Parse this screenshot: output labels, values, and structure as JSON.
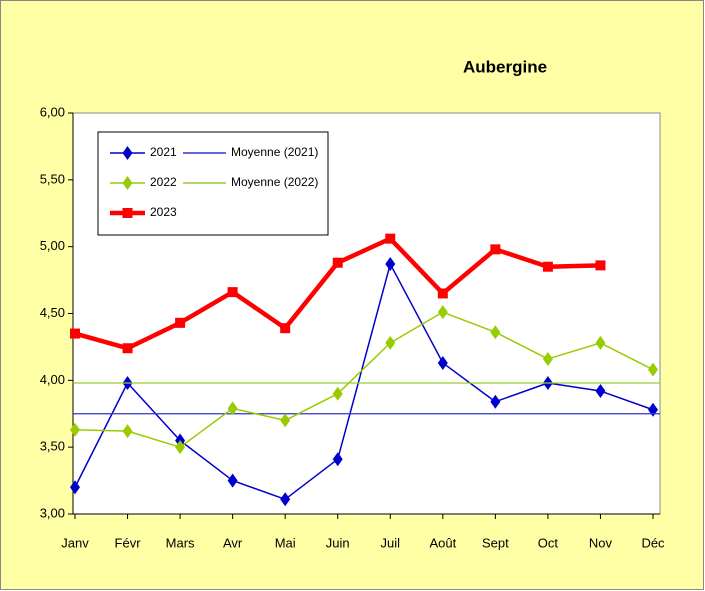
{
  "chart_data": {
    "type": "line",
    "title": "Aubergine",
    "categories": [
      "Janv",
      "Févr",
      "Mars",
      "Avr",
      "Mai",
      "Juin",
      "Juil",
      "Août",
      "Sept",
      "Oct",
      "Nov",
      "Déc"
    ],
    "series": [
      {
        "name": "2021",
        "color": "#0000cc",
        "marker": "diamond",
        "values": [
          3.2,
          3.98,
          3.55,
          3.25,
          3.11,
          3.41,
          4.87,
          4.13,
          3.84,
          3.98,
          3.92,
          3.78
        ]
      },
      {
        "name": "Moyenne (2021)",
        "color": "#3333cc",
        "trendline": true,
        "value": 3.75
      },
      {
        "name": "2022",
        "color": "#99cc00",
        "marker": "diamond",
        "values": [
          3.63,
          3.62,
          3.5,
          3.79,
          3.7,
          3.9,
          4.28,
          4.51,
          4.36,
          4.16,
          4.28,
          4.08
        ]
      },
      {
        "name": "Moyenne (2022)",
        "color": "#99cc33",
        "trendline": true,
        "value": 3.98
      },
      {
        "name": "2023",
        "color": "#ff0000",
        "marker": "square",
        "values": [
          4.35,
          4.24,
          4.43,
          4.66,
          4.39,
          4.88,
          5.06,
          4.65,
          4.98,
          4.85,
          4.86,
          null
        ]
      }
    ],
    "ylim": [
      3,
      6
    ],
    "yticks": [
      {
        "value": 3,
        "label": "3,00"
      },
      {
        "value": 3.5,
        "label": "3,50"
      },
      {
        "value": 4,
        "label": "4,00"
      },
      {
        "value": 4.5,
        "label": "4,50"
      },
      {
        "value": 5,
        "label": "5,00"
      },
      {
        "value": 5.5,
        "label": "5,50"
      },
      {
        "value": 6,
        "label": "6,00"
      }
    ],
    "legend": "upper left"
  }
}
